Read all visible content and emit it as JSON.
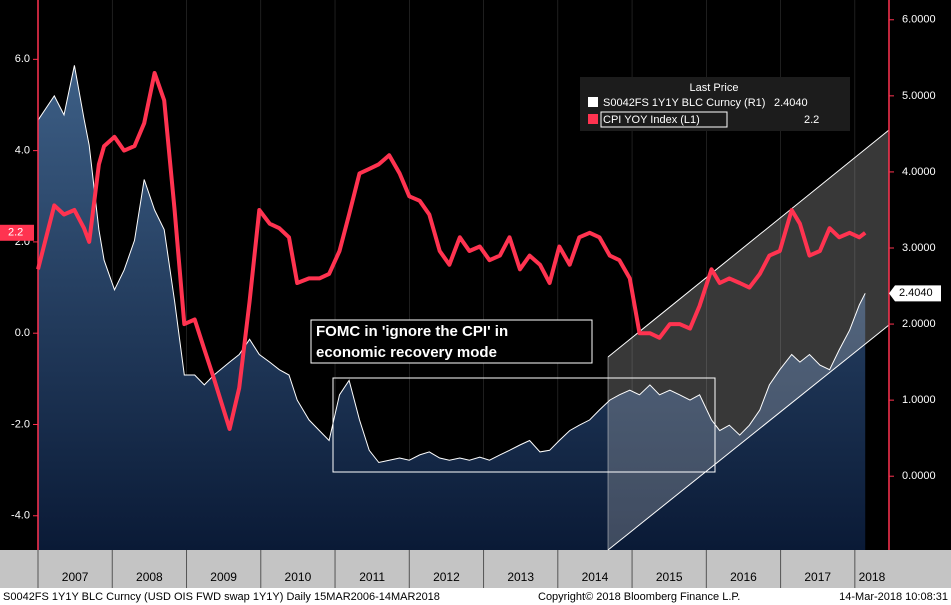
{
  "chart_data": {
    "type": "line",
    "xlim": [
      2007,
      2018.46
    ],
    "xticks": [
      2007,
      2008,
      2009,
      2010,
      2011,
      2012,
      2013,
      2014,
      2015,
      2016,
      2017,
      2018
    ],
    "ylim": [
      -4.75,
      7.3
    ],
    "yticks": [
      {
        "value": 6,
        "label": "6.0"
      },
      {
        "value": 4,
        "label": "4.0"
      },
      {
        "value": 2,
        "label": "2.0"
      },
      {
        "value": 0,
        "label": "0.0"
      },
      {
        "value": -2,
        "label": "-2.0"
      },
      {
        "value": -4,
        "label": "-4.0"
      }
    ],
    "y2lim": [
      -0.97,
      6.26
    ],
    "y2ticks": [
      {
        "value": 6,
        "label": "6.0000"
      },
      {
        "value": 5,
        "label": "5.0000"
      },
      {
        "value": 4,
        "label": "4.0000"
      },
      {
        "value": 3,
        "label": "3.0000"
      },
      {
        "value": 2,
        "label": "2.0000"
      },
      {
        "value": 1,
        "label": "1.0000"
      },
      {
        "value": 0,
        "label": "0.0000"
      }
    ],
    "x": [
      2007.0,
      2007.22,
      2007.35,
      2007.49,
      2007.62,
      2007.69,
      2007.82,
      2007.89,
      2008.03,
      2008.16,
      2008.3,
      2008.43,
      2008.57,
      2008.7,
      2008.84,
      2008.97,
      2009.11,
      2009.24,
      2009.37,
      2009.58,
      2009.71,
      2009.85,
      2009.98,
      2010.12,
      2010.25,
      2010.38,
      2010.49,
      2010.65,
      2010.79,
      2010.92,
      2011.06,
      2011.19,
      2011.33,
      2011.46,
      2011.59,
      2011.73,
      2011.87,
      2012.0,
      2012.14,
      2012.27,
      2012.41,
      2012.54,
      2012.68,
      2012.81,
      2012.95,
      2013.08,
      2013.22,
      2013.35,
      2013.49,
      2013.62,
      2013.76,
      2013.89,
      2014.02,
      2014.16,
      2014.29,
      2014.43,
      2014.56,
      2014.7,
      2014.83,
      2014.97,
      2015.1,
      2015.24,
      2015.37,
      2015.51,
      2015.64,
      2015.78,
      2015.91,
      2016.07,
      2016.18,
      2016.31,
      2016.45,
      2016.58,
      2016.72,
      2016.85,
      2016.99,
      2017.15,
      2017.26,
      2017.39,
      2017.53,
      2017.66,
      2017.79,
      2017.93,
      2018.06,
      2018.14
    ],
    "series": [
      {
        "name": "S0042FS 1Y1Y BLC Curncy  (R1)",
        "color": "#ffffff",
        "axis": "y2",
        "last_label": "2.4040",
        "values": [
          4.68,
          5.0,
          4.75,
          5.4,
          4.7,
          4.35,
          3.24,
          2.84,
          2.45,
          2.71,
          3.1,
          3.9,
          3.5,
          3.24,
          2.3,
          1.33,
          1.33,
          1.2,
          1.33,
          1.5,
          1.6,
          1.8,
          1.6,
          1.5,
          1.4,
          1.33,
          1.0,
          0.74,
          0.6,
          0.47,
          1.07,
          1.26,
          0.74,
          0.34,
          0.18,
          0.21,
          0.24,
          0.21,
          0.28,
          0.32,
          0.24,
          0.21,
          0.24,
          0.21,
          0.25,
          0.21,
          0.28,
          0.34,
          0.41,
          0.47,
          0.32,
          0.34,
          0.47,
          0.6,
          0.67,
          0.74,
          0.87,
          1.0,
          1.07,
          1.13,
          1.07,
          1.2,
          1.07,
          1.13,
          1.07,
          1.0,
          1.07,
          0.74,
          0.6,
          0.67,
          0.54,
          0.67,
          0.87,
          1.2,
          1.4,
          1.6,
          1.5,
          1.6,
          1.46,
          1.4,
          1.66,
          1.92,
          2.25,
          2.404
        ]
      },
      {
        "name": "CPI YOY Index  (L1)",
        "color": "#ff3350",
        "axis": "y",
        "last_label": "2.2",
        "values": [
          1.4,
          2.8,
          2.6,
          2.7,
          2.3,
          2.0,
          3.7,
          4.1,
          4.3,
          4.0,
          4.1,
          4.6,
          5.7,
          5.1,
          2.7,
          0.2,
          0.3,
          -0.35,
          -1.0,
          -2.1,
          -1.2,
          0.7,
          2.7,
          2.4,
          2.3,
          2.1,
          1.1,
          1.2,
          1.2,
          1.3,
          1.8,
          2.6,
          3.5,
          3.6,
          3.7,
          3.9,
          3.5,
          3.0,
          2.9,
          2.6,
          1.8,
          1.5,
          2.1,
          1.8,
          1.9,
          1.6,
          1.7,
          2.1,
          1.4,
          1.7,
          1.5,
          1.1,
          1.9,
          1.5,
          2.1,
          2.2,
          2.1,
          1.7,
          1.6,
          1.2,
          0.0,
          0.0,
          -0.1,
          0.2,
          0.2,
          0.1,
          0.6,
          1.4,
          1.1,
          1.2,
          1.1,
          1.0,
          1.3,
          1.7,
          1.8,
          2.7,
          2.4,
          1.7,
          1.8,
          2.3,
          2.1,
          2.2,
          2.1,
          2.2
        ]
      }
    ],
    "legend_title": "Last Price",
    "annotation": [
      "FOMC in 'ignore the CPI' in",
      "economic recovery mode"
    ],
    "footer_left": "S0042FS 1Y1Y BLC Curncy (USD OIS FWD swap 1Y1Y)  Daily 15MAR2006-14MAR2018",
    "footer_center": "Copyright© 2018 Bloomberg Finance L.P.",
    "footer_right": "14-Mar-2018 10:08:31"
  }
}
